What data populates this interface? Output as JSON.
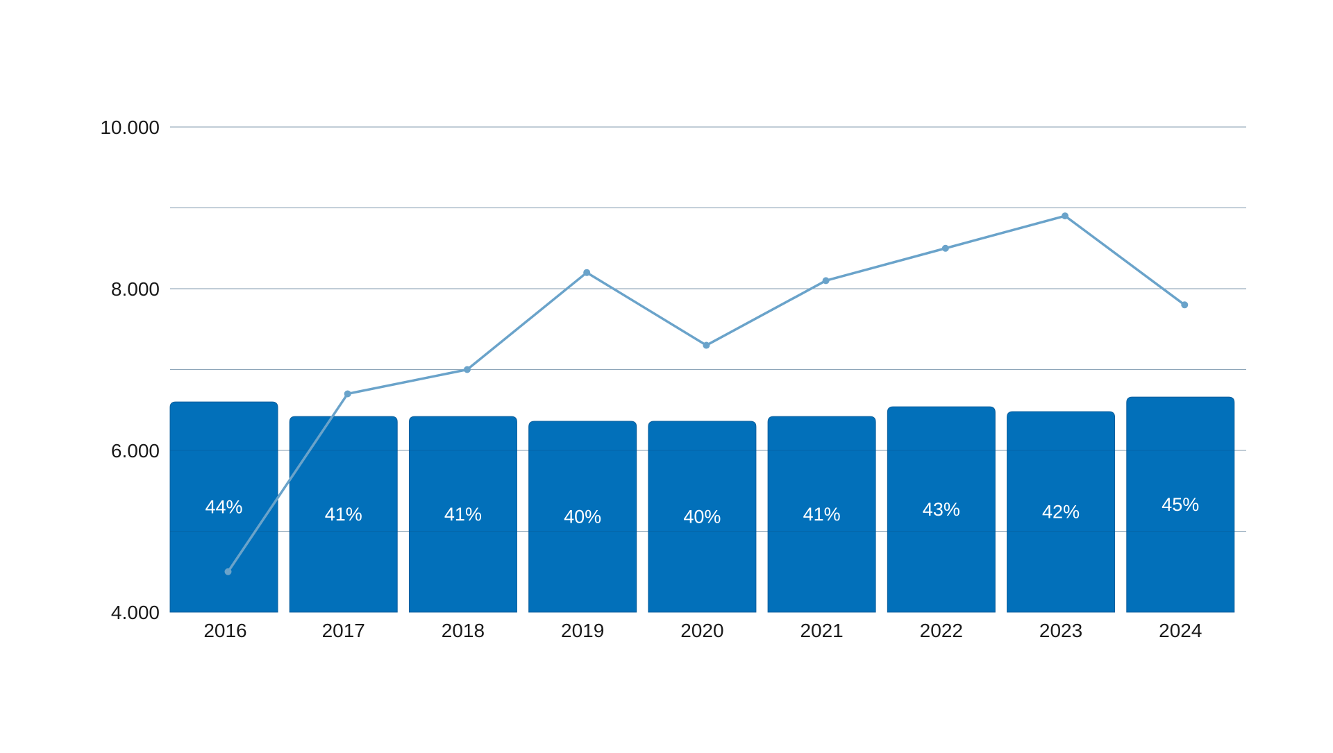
{
  "chart_data": {
    "type": "bar",
    "title": "",
    "xlabel": "",
    "ylabel": "",
    "categories": [
      "2016",
      "2017",
      "2018",
      "2019",
      "2020",
      "2021",
      "2022",
      "2023",
      "2024"
    ],
    "ylim": [
      4000,
      10000
    ],
    "yticks": [
      4000,
      6000,
      8000,
      10000
    ],
    "ytick_labels": [
      "4.000",
      "6.000",
      "8.000",
      "10.000"
    ],
    "grid": true,
    "series": [
      {
        "name": "bars",
        "type": "bar",
        "color": "#0270BA",
        "values": [
          6600,
          6420,
          6420,
          6360,
          6360,
          6420,
          6540,
          6480,
          6660
        ],
        "labels": [
          "44%",
          "41%",
          "41%",
          "40%",
          "40%",
          "41%",
          "43%",
          "42%",
          "45%"
        ]
      },
      {
        "name": "line",
        "type": "line",
        "color": "#6AA3CA",
        "values": [
          4500,
          6700,
          7000,
          8200,
          7300,
          8100,
          8500,
          8900,
          7800
        ]
      }
    ]
  }
}
